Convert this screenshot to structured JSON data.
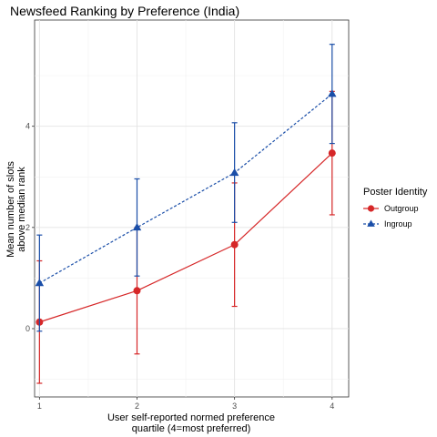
{
  "chart_data": {
    "type": "line",
    "title": "Newsfeed Ranking by Preference (India)",
    "xlabel_lines": [
      "User self-reported normed preference",
      "quartile (4=most preferred)"
    ],
    "ylabel_lines": [
      "Mean number of slots",
      "above median rank"
    ],
    "x": [
      1,
      2,
      3,
      4
    ],
    "x_tick_labels": [
      "1",
      "2",
      "3",
      "4"
    ],
    "y_ticks": [
      0,
      2,
      4
    ],
    "y_tick_labels": [
      "0",
      "2",
      "4"
    ],
    "xlim": [
      0.95,
      4.17
    ],
    "ylim": [
      -1.35,
      6.1
    ],
    "grid": true,
    "legend": {
      "title": "Poster Identity",
      "position": "right"
    },
    "series": [
      {
        "name": "Outgroup",
        "color": "#d62728",
        "marker": "circle",
        "line": "solid",
        "values": [
          0.13,
          0.75,
          1.66,
          3.47
        ],
        "lower": [
          -1.08,
          -0.5,
          0.44,
          2.25
        ],
        "upper": [
          1.34,
          2.0,
          2.88,
          4.69
        ]
      },
      {
        "name": "Ingroup",
        "color": "#1a4ea8",
        "marker": "triangle",
        "line": "dashed",
        "values": [
          0.9,
          2.0,
          3.08,
          4.64
        ],
        "lower": [
          -0.05,
          1.04,
          2.1,
          3.66
        ],
        "upper": [
          1.85,
          2.96,
          4.07,
          5.62
        ]
      }
    ]
  }
}
